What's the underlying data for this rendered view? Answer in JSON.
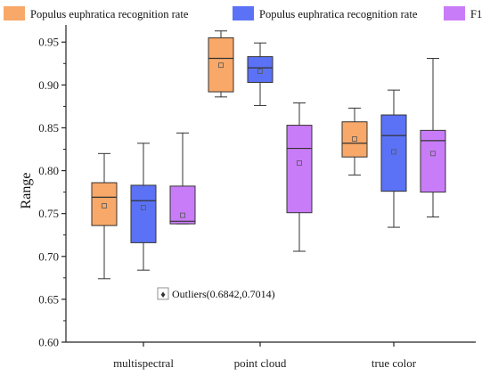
{
  "chart_data": {
    "type": "box",
    "ylabel": "Range",
    "xlabel": "",
    "ylim": [
      0.6,
      0.97
    ],
    "yticks": [
      0.6,
      0.65,
      0.7,
      0.75,
      0.8,
      0.85,
      0.9,
      0.95
    ],
    "ytick_labels": [
      "0.60",
      "0.65",
      "0.70",
      "0.75",
      "0.80",
      "0.85",
      "0.90",
      "0.95"
    ],
    "grid": false,
    "legend_position": "top",
    "categories": [
      "multispectral",
      "point cloud",
      "true color"
    ],
    "series": [
      {
        "name": "Populus euphratica recognition rate",
        "color": "#F8A868",
        "boxes": [
          {
            "min": 0.674,
            "q1": 0.736,
            "median": 0.769,
            "q3": 0.786,
            "max": 0.82,
            "mean": 0.759
          },
          {
            "min": 0.886,
            "q1": 0.892,
            "median": 0.931,
            "q3": 0.955,
            "max": 0.963,
            "mean": 0.923
          },
          {
            "min": 0.795,
            "q1": 0.816,
            "median": 0.832,
            "q3": 0.857,
            "max": 0.873,
            "mean": 0.837
          }
        ]
      },
      {
        "name": "Populus euphratica recognition rate",
        "color": "#5B72F6",
        "boxes": [
          {
            "min": 0.684,
            "q1": 0.716,
            "median": 0.765,
            "q3": 0.783,
            "max": 0.832,
            "mean": 0.757
          },
          {
            "min": 0.876,
            "q1": 0.903,
            "median": 0.92,
            "q3": 0.933,
            "max": 0.949,
            "mean": 0.916
          },
          {
            "min": 0.734,
            "q1": 0.776,
            "median": 0.841,
            "q3": 0.865,
            "max": 0.894,
            "mean": 0.822
          }
        ]
      },
      {
        "name": "F1",
        "color": "#C97CF7",
        "boxes": [
          {
            "min": 0.738,
            "q1": 0.738,
            "median": 0.741,
            "q3": 0.782,
            "max": 0.844,
            "mean": 0.748
          },
          {
            "min": 0.706,
            "q1": 0.751,
            "median": 0.826,
            "q3": 0.853,
            "max": 0.879,
            "mean": 0.809
          },
          {
            "min": 0.746,
            "q1": 0.775,
            "median": 0.835,
            "q3": 0.847,
            "max": 0.931,
            "mean": 0.82
          }
        ]
      }
    ],
    "annotation": {
      "text": "Outliers(0.6842,0.7014)"
    }
  }
}
